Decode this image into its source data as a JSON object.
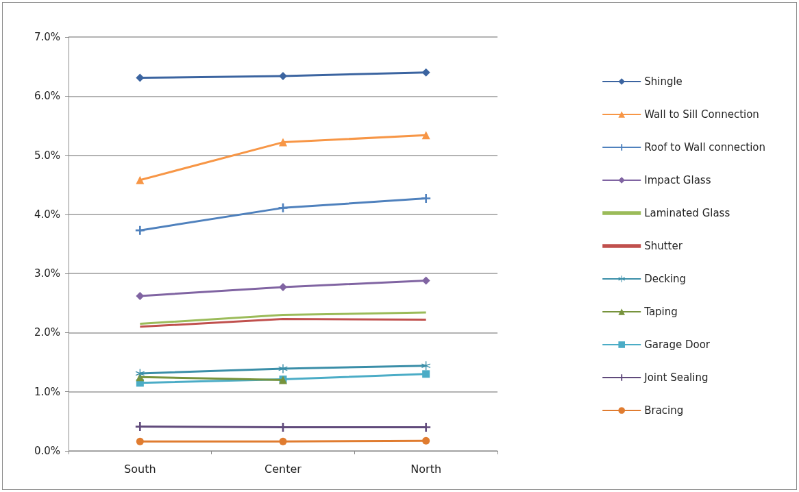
{
  "chart_data": {
    "type": "line",
    "categories": [
      "South",
      "Center",
      "North"
    ],
    "ylim": [
      0,
      7
    ],
    "yticks": [
      {
        "value": 0,
        "label": "0.0%"
      },
      {
        "value": 1,
        "label": "1.0%"
      },
      {
        "value": 2,
        "label": "2.0%"
      },
      {
        "value": 3,
        "label": "3.0%"
      },
      {
        "value": 4,
        "label": "4.0%"
      },
      {
        "value": 5,
        "label": "5.0%"
      },
      {
        "value": 6,
        "label": "6.0%"
      },
      {
        "value": 7,
        "label": "7.0%"
      }
    ],
    "grid": "y",
    "legend": "right",
    "series": [
      {
        "name": "Shingle",
        "color": "#3b64a0",
        "marker": "diamond",
        "values": [
          6.31,
          6.34,
          6.4
        ]
      },
      {
        "name": "Wall to Sill Connection",
        "color": "#f79646",
        "marker": "triangle",
        "values": [
          4.58,
          5.22,
          5.34
        ]
      },
      {
        "name": "Roof to Wall connection",
        "color": "#4f81bd",
        "marker": "cross",
        "values": [
          3.73,
          4.11,
          4.27
        ]
      },
      {
        "name": "Impact Glass",
        "color": "#8064a2",
        "marker": "diamond",
        "values": [
          2.62,
          2.77,
          2.88
        ]
      },
      {
        "name": "Laminated Glass",
        "color": "#9bbb59",
        "marker": "none",
        "values": [
          2.15,
          2.3,
          2.34
        ]
      },
      {
        "name": "Shutter",
        "color": "#c0504d",
        "marker": "none",
        "values": [
          2.1,
          2.23,
          2.22
        ]
      },
      {
        "name": "Decking",
        "color": "#3a8ea8",
        "marker": "star",
        "values": [
          1.31,
          1.39,
          1.44
        ]
      },
      {
        "name": "Taping",
        "color": "#77933c",
        "marker": "triangle",
        "values": [
          1.25,
          1.2,
          null
        ]
      },
      {
        "name": "Garage Door",
        "color": "#4bacc6",
        "marker": "square",
        "values": [
          1.15,
          1.21,
          1.3
        ]
      },
      {
        "name": "Joint Sealing",
        "color": "#604a7b",
        "marker": "cross",
        "values": [
          0.41,
          0.4,
          0.4
        ]
      },
      {
        "name": "Bracing",
        "color": "#e07c30",
        "marker": "circle",
        "values": [
          0.16,
          0.16,
          0.17
        ]
      }
    ]
  }
}
